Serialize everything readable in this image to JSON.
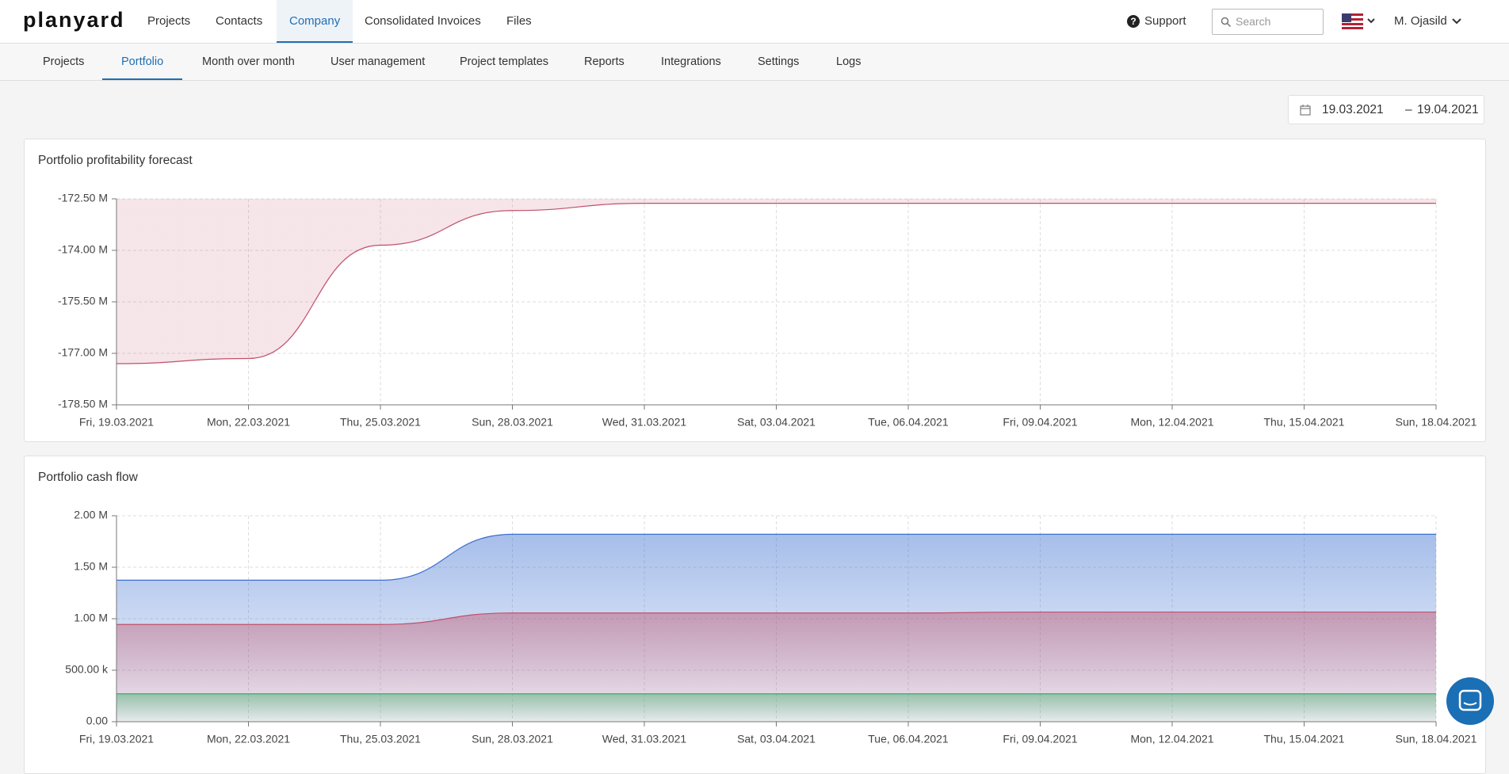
{
  "header": {
    "logo": "planyard",
    "nav": [
      "Projects",
      "Contacts",
      "Company",
      "Consolidated Invoices",
      "Files"
    ],
    "support": "Support",
    "search_placeholder": "Search",
    "user": "M. Ojasild"
  },
  "subnav": [
    "Projects",
    "Portfolio",
    "Month over month",
    "User management",
    "Project templates",
    "Reports",
    "Integrations",
    "Settings",
    "Logs"
  ],
  "date_range": {
    "start": "19.03.2021",
    "separator": "–",
    "end": "19.04.2021"
  },
  "chart_data": [
    {
      "type": "area",
      "title": "Portfolio profitability forecast",
      "fill_to": "top",
      "grid": true,
      "categories": [
        "Fri, 19.03.2021",
        "Mon, 22.03.2021",
        "Thu, 25.03.2021",
        "Sun, 28.03.2021",
        "Wed, 31.03.2021",
        "Sat, 03.04.2021",
        "Tue, 06.04.2021",
        "Fri, 09.04.2021",
        "Mon, 12.04.2021",
        "Thu, 15.04.2021",
        "Sun, 18.04.2021"
      ],
      "series": [
        {
          "color": "#c0506a",
          "values": [
            -177.3,
            -177.15,
            -173.85,
            -172.84,
            -172.63,
            -172.63,
            -172.63,
            -172.63,
            -172.63,
            -172.63,
            -172.63
          ]
        }
      ],
      "ylim": [
        -178.5,
        -172.5
      ],
      "yticks": [
        {
          "value": -178.5,
          "label": "-178.50 M"
        },
        {
          "value": -177,
          "label": "-177.00 M"
        },
        {
          "value": -175.5,
          "label": "-175.50 M"
        },
        {
          "value": -174,
          "label": "-174.00 M"
        },
        {
          "value": -172.5,
          "label": "-172.50 M"
        }
      ]
    },
    {
      "type": "area",
      "title": "Portfolio cash flow",
      "fill_to": "zero",
      "grid": true,
      "categories": [
        "Fri, 19.03.2021",
        "Mon, 22.03.2021",
        "Thu, 25.03.2021",
        "Sun, 28.03.2021",
        "Wed, 31.03.2021",
        "Sat, 03.04.2021",
        "Tue, 06.04.2021",
        "Fri, 09.04.2021",
        "Mon, 12.04.2021",
        "Thu, 15.04.2021",
        "Sun, 18.04.2021"
      ],
      "series": [
        {
          "color": "#3b6fd0",
          "values": [
            1374000,
            1374000,
            1374000,
            1820000,
            1820000,
            1820000,
            1820000,
            1820000,
            1820000,
            1820000,
            1820000
          ]
        },
        {
          "color": "#c0506a",
          "values": [
            944000,
            944000,
            944000,
            1056000,
            1056000,
            1056000,
            1056000,
            1065000,
            1065000,
            1065000,
            1065000
          ]
        },
        {
          "color": "#3daa6a",
          "values": [
            271000,
            271000,
            271000,
            271000,
            271000,
            271000,
            271000,
            271000,
            271000,
            271000,
            271000
          ]
        }
      ],
      "ylim": [
        0,
        2000000
      ],
      "yticks": [
        {
          "value": 0,
          "label": "0.00"
        },
        {
          "value": 500000,
          "label": "500.00 k"
        },
        {
          "value": 1000000,
          "label": "1.00 M"
        },
        {
          "value": 1500000,
          "label": "1.50 M"
        },
        {
          "value": 2000000,
          "label": "2.00 M"
        }
      ]
    }
  ]
}
